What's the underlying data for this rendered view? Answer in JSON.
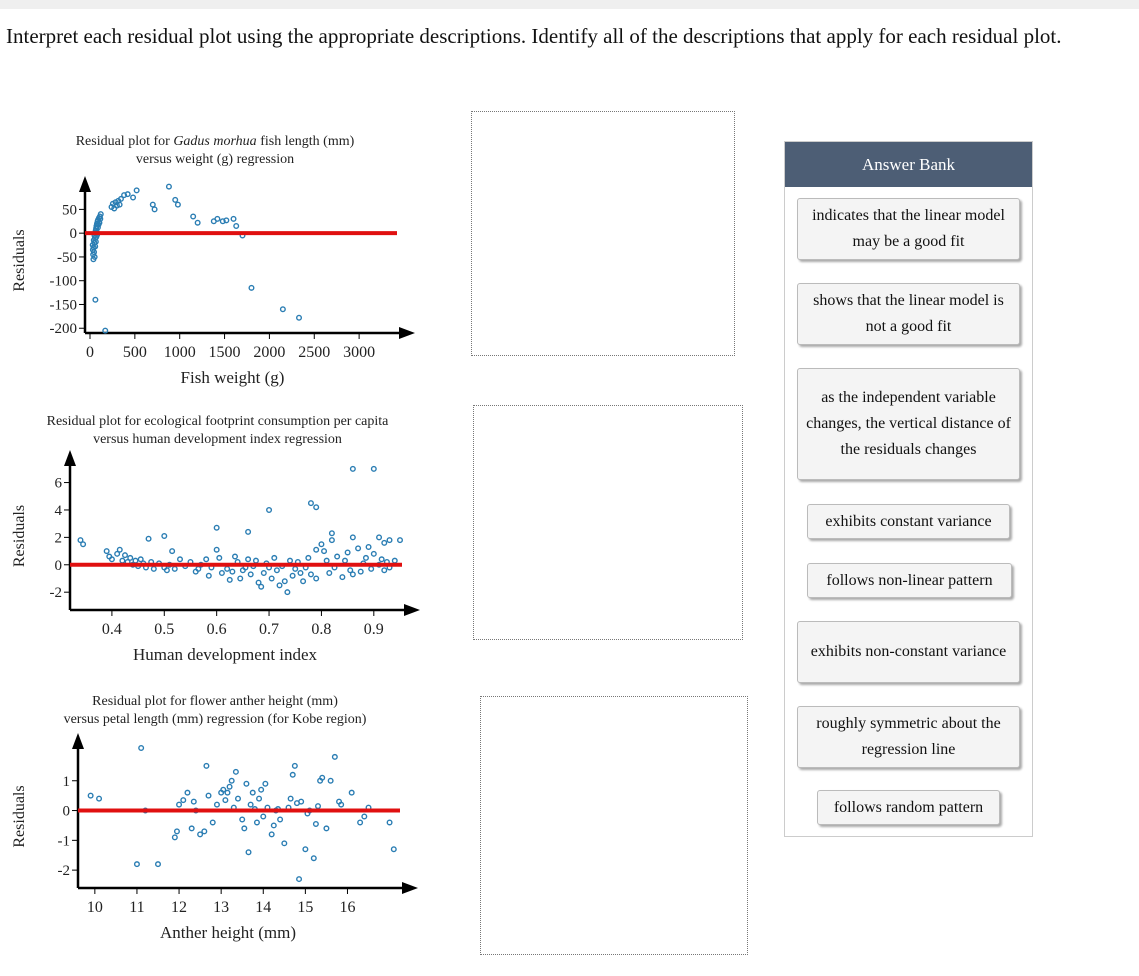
{
  "instructions": "Interpret each residual plot using the appropriate descriptions. Identify all of the descriptions that apply for each residual plot.",
  "colors": {
    "points": "#2a7db3",
    "zero_line": "#e01010",
    "bank_header": "#4d5e75"
  },
  "plots": [
    {
      "title_pre": "Residual plot for ",
      "title_italic": "Gadus morhua",
      "title_post": " fish length (mm)",
      "title_line2": "versus weight (g) regression",
      "ylabel": "Residuals",
      "xlabel": "Fish weight (g)",
      "yticks": [
        "50",
        "0",
        "-50",
        "-100",
        "-150",
        "-200"
      ],
      "xticks": [
        "0",
        "500",
        "1000",
        "1500",
        "2000",
        "2500",
        "3000"
      ]
    },
    {
      "title_pre": "Residual plot for ecological footprint consumption per capita",
      "title_italic": "",
      "title_post": "",
      "title_line2": "versus human development index regression",
      "ylabel": "Residuals",
      "xlabel": "Human development index",
      "yticks": [
        "6",
        "4",
        "2",
        "0",
        "-2"
      ],
      "xticks": [
        "0.4",
        "0.5",
        "0.6",
        "0.7",
        "0.8",
        "0.9"
      ]
    },
    {
      "title_pre": "Residual plot for flower anther height (mm)",
      "title_italic": "",
      "title_post": "",
      "title_line2": "versus petal length (mm) regression (for Kobe region)",
      "ylabel": "Residuals",
      "xlabel": "Anther height (mm)",
      "yticks": [
        "1",
        "0",
        "-1",
        "-2"
      ],
      "xticks": [
        "10",
        "11",
        "12",
        "13",
        "14",
        "15",
        "16"
      ]
    }
  ],
  "chart_data": [
    {
      "type": "scatter",
      "xlabel": "Fish weight (g)",
      "ylabel": "Residuals",
      "xlim": [
        0,
        3400
      ],
      "ylim": [
        -210,
        95
      ],
      "points": [
        [
          30,
          -25
        ],
        [
          32,
          -35
        ],
        [
          35,
          -45
        ],
        [
          38,
          -55
        ],
        [
          40,
          -30
        ],
        [
          42,
          -15
        ],
        [
          45,
          -40
        ],
        [
          48,
          -20
        ],
        [
          50,
          -5
        ],
        [
          52,
          -50
        ],
        [
          55,
          -10
        ],
        [
          58,
          -28
        ],
        [
          60,
          0
        ],
        [
          63,
          5
        ],
        [
          65,
          -18
        ],
        [
          68,
          10
        ],
        [
          70,
          -8
        ],
        [
          72,
          15
        ],
        [
          75,
          3
        ],
        [
          78,
          20
        ],
        [
          80,
          -3
        ],
        [
          85,
          25
        ],
        [
          88,
          12
        ],
        [
          90,
          28
        ],
        [
          95,
          18
        ],
        [
          100,
          32
        ],
        [
          105,
          22
        ],
        [
          110,
          35
        ],
        [
          115,
          30
        ],
        [
          120,
          40
        ],
        [
          60,
          -140
        ],
        [
          170,
          -205
        ],
        [
          240,
          55
        ],
        [
          255,
          62
        ],
        [
          270,
          52
        ],
        [
          285,
          65
        ],
        [
          300,
          58
        ],
        [
          315,
          68
        ],
        [
          330,
          60
        ],
        [
          345,
          72
        ],
        [
          380,
          80
        ],
        [
          420,
          82
        ],
        [
          480,
          75
        ],
        [
          520,
          90
        ],
        [
          700,
          60
        ],
        [
          720,
          50
        ],
        [
          880,
          98
        ],
        [
          950,
          70
        ],
        [
          980,
          60
        ],
        [
          1150,
          35
        ],
        [
          1200,
          22
        ],
        [
          1380,
          25
        ],
        [
          1420,
          30
        ],
        [
          1480,
          25
        ],
        [
          1520,
          27
        ],
        [
          1600,
          30
        ],
        [
          1630,
          15
        ],
        [
          1700,
          -5
        ],
        [
          1800,
          -115
        ],
        [
          2150,
          -160
        ],
        [
          2330,
          -178
        ]
      ]
    },
    {
      "type": "scatter",
      "xlabel": "Human development index",
      "ylabel": "Residuals",
      "xlim": [
        0.32,
        0.95
      ],
      "ylim": [
        -3.3,
        7.5
      ],
      "points": [
        [
          0.34,
          1.8
        ],
        [
          0.345,
          1.5
        ],
        [
          0.39,
          1.0
        ],
        [
          0.395,
          0.6
        ],
        [
          0.4,
          0.4
        ],
        [
          0.41,
          0.8
        ],
        [
          0.415,
          1.1
        ],
        [
          0.42,
          0.3
        ],
        [
          0.425,
          0.7
        ],
        [
          0.43,
          0.2
        ],
        [
          0.435,
          0.5
        ],
        [
          0.44,
          0.0
        ],
        [
          0.445,
          0.3
        ],
        [
          0.45,
          -0.1
        ],
        [
          0.455,
          0.4
        ],
        [
          0.46,
          0.1
        ],
        [
          0.465,
          -0.2
        ],
        [
          0.47,
          1.9
        ],
        [
          0.475,
          0.2
        ],
        [
          0.48,
          -0.3
        ],
        [
          0.49,
          0.1
        ],
        [
          0.5,
          -0.2
        ],
        [
          0.505,
          -0.4
        ],
        [
          0.51,
          0.0
        ],
        [
          0.515,
          1.0
        ],
        [
          0.52,
          -0.3
        ],
        [
          0.53,
          0.4
        ],
        [
          0.54,
          -0.1
        ],
        [
          0.55,
          0.2
        ],
        [
          0.56,
          -0.5
        ],
        [
          0.565,
          -0.3
        ],
        [
          0.57,
          0.0
        ],
        [
          0.58,
          0.4
        ],
        [
          0.585,
          -0.8
        ],
        [
          0.59,
          -0.2
        ],
        [
          0.6,
          1.1
        ],
        [
          0.605,
          0.5
        ],
        [
          0.61,
          -0.6
        ],
        [
          0.62,
          -0.3
        ],
        [
          0.625,
          -1.1
        ],
        [
          0.63,
          -0.5
        ],
        [
          0.635,
          0.6
        ],
        [
          0.64,
          0.2
        ],
        [
          0.645,
          -1.0
        ],
        [
          0.65,
          -0.4
        ],
        [
          0.655,
          -0.2
        ],
        [
          0.66,
          0.4
        ],
        [
          0.665,
          -0.7
        ],
        [
          0.67,
          -0.1
        ],
        [
          0.675,
          0.3
        ],
        [
          0.68,
          -1.3
        ],
        [
          0.685,
          -1.6
        ],
        [
          0.69,
          -0.6
        ],
        [
          0.695,
          0.1
        ],
        [
          0.7,
          -0.2
        ],
        [
          0.705,
          -1.0
        ],
        [
          0.71,
          0.5
        ],
        [
          0.715,
          -0.4
        ],
        [
          0.72,
          -1.5
        ],
        [
          0.725,
          -0.1
        ],
        [
          0.73,
          -1.2
        ],
        [
          0.735,
          -2.0
        ],
        [
          0.74,
          0.3
        ],
        [
          0.745,
          -0.8
        ],
        [
          0.75,
          -0.3
        ],
        [
          0.755,
          0.2
        ],
        [
          0.76,
          -0.6
        ],
        [
          0.765,
          -1.2
        ],
        [
          0.77,
          -0.2
        ],
        [
          0.775,
          0.5
        ],
        [
          0.78,
          -0.7
        ],
        [
          0.79,
          -1.0
        ],
        [
          0.8,
          1.5
        ],
        [
          0.805,
          1.0
        ],
        [
          0.81,
          0.3
        ],
        [
          0.815,
          -0.6
        ],
        [
          0.82,
          1.8
        ],
        [
          0.825,
          -0.2
        ],
        [
          0.83,
          0.6
        ],
        [
          0.84,
          -0.9
        ],
        [
          0.845,
          0.3
        ],
        [
          0.85,
          0.9
        ],
        [
          0.855,
          -0.4
        ],
        [
          0.86,
          -0.7
        ],
        [
          0.87,
          1.2
        ],
        [
          0.875,
          -0.5
        ],
        [
          0.88,
          0.1
        ],
        [
          0.885,
          0.5
        ],
        [
          0.89,
          1.3
        ],
        [
          0.895,
          -0.3
        ],
        [
          0.9,
          0.8
        ],
        [
          0.91,
          0.0
        ],
        [
          0.915,
          0.4
        ],
        [
          0.92,
          -0.4
        ],
        [
          0.925,
          0.2
        ],
        [
          0.93,
          -0.2
        ],
        [
          0.94,
          0.3
        ],
        [
          0.66,
          2.4
        ],
        [
          0.6,
          2.7
        ],
        [
          0.5,
          2.1
        ],
        [
          0.7,
          4.0
        ],
        [
          0.78,
          4.5
        ],
        [
          0.79,
          4.2
        ],
        [
          0.79,
          1.1
        ],
        [
          0.82,
          2.3
        ],
        [
          0.86,
          2.0
        ],
        [
          0.86,
          7.0
        ],
        [
          0.9,
          7.0
        ],
        [
          0.91,
          2.0
        ],
        [
          0.92,
          1.6
        ],
        [
          0.93,
          1.8
        ],
        [
          0.95,
          1.8
        ]
      ]
    },
    {
      "type": "scatter",
      "xlabel": "Anther height (mm)",
      "ylabel": "Residuals",
      "xlim": [
        9.6,
        17.2
      ],
      "ylim": [
        -2.6,
        2.2
      ],
      "points": [
        [
          9.9,
          0.5
        ],
        [
          10.1,
          0.4
        ],
        [
          11.0,
          -1.8
        ],
        [
          11.1,
          2.1
        ],
        [
          11.2,
          0.0
        ],
        [
          11.5,
          -1.8
        ],
        [
          11.9,
          -0.9
        ],
        [
          11.95,
          -0.7
        ],
        [
          12.0,
          0.2
        ],
        [
          12.1,
          0.35
        ],
        [
          12.2,
          0.6
        ],
        [
          12.3,
          -0.6
        ],
        [
          12.35,
          0.3
        ],
        [
          12.4,
          0.0
        ],
        [
          12.5,
          -0.8
        ],
        [
          12.6,
          -0.7
        ],
        [
          12.65,
          1.5
        ],
        [
          12.7,
          0.5
        ],
        [
          12.8,
          -0.4
        ],
        [
          12.9,
          0.2
        ],
        [
          13.0,
          0.6
        ],
        [
          13.05,
          0.7
        ],
        [
          13.1,
          0.35
        ],
        [
          13.15,
          0.6
        ],
        [
          13.2,
          0.8
        ],
        [
          13.25,
          1.0
        ],
        [
          13.3,
          0.1
        ],
        [
          13.35,
          1.3
        ],
        [
          13.4,
          0.4
        ],
        [
          13.5,
          -0.3
        ],
        [
          13.55,
          -0.6
        ],
        [
          13.6,
          0.9
        ],
        [
          13.65,
          -1.4
        ],
        [
          13.7,
          0.2
        ],
        [
          13.75,
          0.6
        ],
        [
          13.8,
          0.05
        ],
        [
          13.85,
          -0.4
        ],
        [
          13.9,
          0.4
        ],
        [
          13.95,
          0.7
        ],
        [
          14.0,
          -0.2
        ],
        [
          14.05,
          0.9
        ],
        [
          14.1,
          0.1
        ],
        [
          14.2,
          -0.8
        ],
        [
          14.25,
          -0.5
        ],
        [
          14.3,
          0.0
        ],
        [
          14.35,
          0.05
        ],
        [
          14.4,
          -0.3
        ],
        [
          14.5,
          -1.1
        ],
        [
          14.6,
          0.1
        ],
        [
          14.65,
          0.4
        ],
        [
          14.7,
          1.2
        ],
        [
          14.75,
          1.5
        ],
        [
          14.8,
          0.25
        ],
        [
          14.85,
          -2.3
        ],
        [
          14.9,
          0.3
        ],
        [
          15.0,
          -1.3
        ],
        [
          15.05,
          -0.1
        ],
        [
          15.1,
          0.0
        ],
        [
          15.2,
          -1.6
        ],
        [
          15.25,
          -0.45
        ],
        [
          15.3,
          0.15
        ],
        [
          15.35,
          1.0
        ],
        [
          15.4,
          1.1
        ],
        [
          15.5,
          -0.6
        ],
        [
          15.6,
          1.0
        ],
        [
          15.7,
          1.8
        ],
        [
          15.8,
          0.3
        ],
        [
          15.85,
          0.2
        ],
        [
          16.1,
          0.6
        ],
        [
          16.3,
          -0.4
        ],
        [
          16.4,
          -0.2
        ],
        [
          16.5,
          0.1
        ],
        [
          17.0,
          -0.4
        ],
        [
          17.1,
          -1.3
        ]
      ]
    }
  ],
  "dropzones": [
    {
      "label": "drop area for plot 1"
    },
    {
      "label": "drop area for plot 2"
    },
    {
      "label": "drop area for plot 3"
    }
  ],
  "answer_bank": {
    "title": "Answer Bank",
    "items": [
      "indicates that the linear model may be a good fit",
      "shows that the linear model is not a good fit",
      "as the independent variable changes, the vertical distance of the residuals changes",
      "exhibits constant variance",
      "follows non-linear pattern",
      "exhibits non-constant variance",
      "roughly symmetric about the regression line",
      "follows random pattern"
    ]
  }
}
